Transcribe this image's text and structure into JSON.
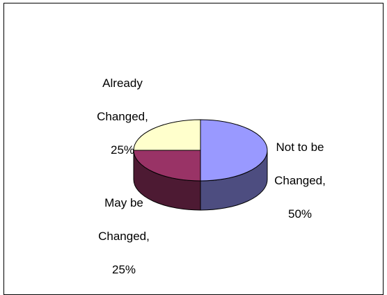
{
  "chart_data": {
    "type": "pie",
    "variant": "3d",
    "title": "",
    "categories": [
      "Not to be Changed",
      "May be Changed",
      "Already Changed"
    ],
    "values": [
      50,
      25,
      25
    ],
    "value_unit": "%",
    "colors": [
      "#9999ff",
      "#993366",
      "#ffffcc"
    ],
    "side_colors": [
      "#4d4d80",
      "#4d1a33",
      "#808066"
    ],
    "legend": "none",
    "labels": [
      {
        "name_line1": "Not to be",
        "name_line2": "Changed,",
        "pct": "50%"
      },
      {
        "name_line1": "May be",
        "name_line2": "Changed,",
        "pct": "25%"
      },
      {
        "name_line1": "Already",
        "name_line2": "Changed,",
        "pct": "25%"
      }
    ]
  }
}
